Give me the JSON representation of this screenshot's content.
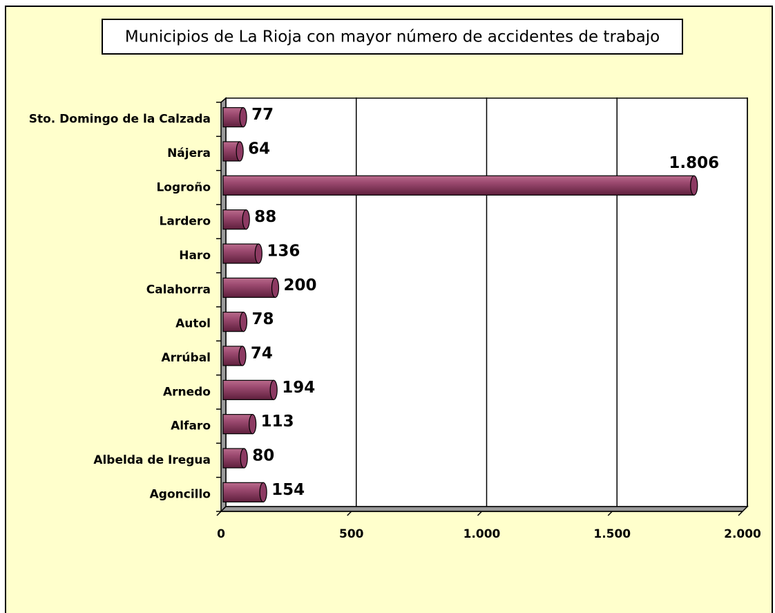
{
  "chart_data": {
    "type": "bar",
    "orientation": "horizontal",
    "title": "Municipios de La Rioja con mayor número de accidentes de trabajo",
    "categories": [
      "Sto. Domingo de la Calzada",
      "Nájera",
      "Logroño",
      "Lardero",
      "Haro",
      "Calahorra",
      "Autol",
      "Arrúbal",
      "Arnedo",
      "Alfaro",
      "Albelda de Iregua",
      "Agoncillo"
    ],
    "values": [
      77,
      64,
      1806,
      88,
      136,
      200,
      78,
      74,
      194,
      113,
      80,
      154
    ],
    "value_labels": [
      "77",
      "64",
      "1.806",
      "88",
      "136",
      "200",
      "78",
      "74",
      "194",
      "113",
      "80",
      "154"
    ],
    "color": "#8c3a62",
    "xlim": [
      0,
      2000
    ],
    "xticks": [
      0,
      500,
      {
        "value": 1000,
        "label": "1.000"
      },
      {
        "value": 1500,
        "label": "1.500"
      },
      {
        "value": 2000,
        "label": "2.000"
      }
    ],
    "grid": true
  }
}
